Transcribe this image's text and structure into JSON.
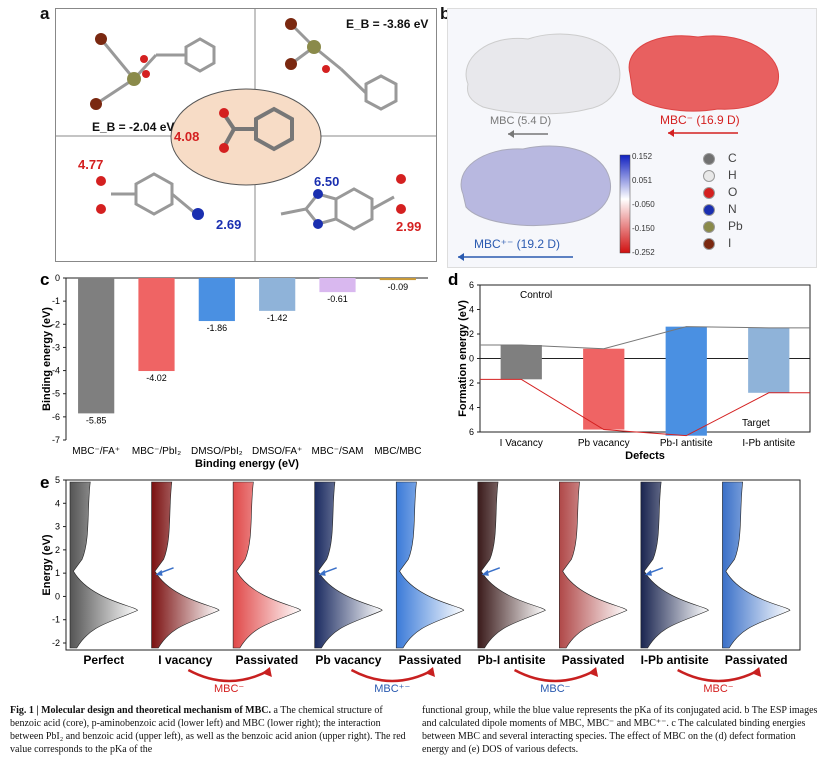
{
  "panels": {
    "a": "a",
    "b": "b",
    "c": "c",
    "d": "d",
    "e": "e"
  },
  "panel_a": {
    "eb_upper_left": "E_B = -2.04 eV",
    "eb_upper_right": "E_B = -3.86 eV",
    "pka_core": "4.08",
    "pka_lower_left_acid": "4.77",
    "pka_lower_left_base": "2.69",
    "pka_lower_right_base": "6.50",
    "pka_lower_right_acid": "2.99"
  },
  "panel_b": {
    "mbc_label": "MBC (5.4 D)",
    "mbc_minus_label": "MBC⁻ (16.9 D)",
    "mbc_plus_minus_label": "MBC⁺⁻ (19.2 D)",
    "colorbar_ticks": [
      "0.152",
      "0.051",
      "-0.050",
      "-0.150",
      "-0.252"
    ],
    "legend": [
      {
        "symbol": "C",
        "color": "#707070"
      },
      {
        "symbol": "H",
        "color": "#e8e8e8"
      },
      {
        "symbol": "O",
        "color": "#d42020"
      },
      {
        "symbol": "N",
        "color": "#1a2fb0"
      },
      {
        "symbol": "Pb",
        "color": "#8a8a4a"
      },
      {
        "symbol": "I",
        "color": "#7a2810"
      }
    ]
  },
  "chart_data": [
    {
      "panel": "c",
      "type": "bar",
      "ylabel": "Binding energy (eV)",
      "xlabel": "Binding energy (eV)",
      "categories": [
        "MBC⁻/FA⁺",
        "MBC⁻/PbI₂",
        "DMSO/PbI₂",
        "DMSO/FA⁺",
        "MBC⁻/SAM",
        "MBC/MBC"
      ],
      "values": [
        -5.85,
        -4.02,
        -1.86,
        -1.42,
        -0.61,
        -0.09
      ],
      "value_labels": [
        "-5.85",
        "-4.02",
        "-1.86",
        "-1.42",
        "-0.61",
        "-0.09"
      ],
      "colors": [
        "#7f7f7f",
        "#ef6464",
        "#4a90e2",
        "#8fb3d9",
        "#d9b8ef",
        "#c89a3a"
      ],
      "ylim": [
        -7,
        0
      ],
      "yticks": [
        "0",
        "-1",
        "-2",
        "-3",
        "-4",
        "-5",
        "-6",
        "-7"
      ]
    },
    {
      "panel": "d",
      "type": "bar",
      "ylabel": "Formation energy (eV)",
      "xlabel": "Defects",
      "categories": [
        "I Vacancy",
        "Pb vacancy",
        "Pb-I antisite",
        "I-Pb antisite"
      ],
      "series": [
        {
          "name": "Control",
          "values": [
            1.1,
            0.8,
            2.6,
            2.5
          ]
        },
        {
          "name": "Target",
          "values": [
            1.7,
            5.8,
            6.3,
            2.8
          ]
        }
      ],
      "colors": [
        "#7f7f7f",
        "#ef6464",
        "#4a90e2",
        "#8fb3d9"
      ],
      "ylim": [
        -6,
        6
      ],
      "yticks": [
        "6",
        "4",
        "2",
        "0",
        "2",
        "4",
        "6"
      ],
      "annotations": [
        "Control",
        "Target"
      ]
    },
    {
      "panel": "e",
      "type": "area",
      "ylabel": "Energy (eV)",
      "yticks": [
        "5",
        "4",
        "3",
        "2",
        "1",
        "0",
        "-1",
        "-2"
      ],
      "ylim": [
        -2.3,
        5
      ],
      "labels": [
        "Perfect",
        "I vacancy",
        "Passivated",
        "Pb vacancy",
        "Passivated",
        "Pb-I antisite",
        "Passivated",
        "I-Pb antisite",
        "Passivated"
      ],
      "colors": [
        "#555555",
        "#7a1010",
        "#e04848",
        "#1a2a60",
        "#3a7ad8",
        "#3a1a1a",
        "#b04848",
        "#1a2550",
        "#3a70c8"
      ],
      "defect_arrows": [
        false,
        true,
        false,
        true,
        false,
        true,
        false,
        true,
        false
      ],
      "arrow_labels": [
        "MBC⁻",
        "MBC⁺⁻",
        "MBC⁻",
        "MBC⁻"
      ],
      "arrow_label_colors": [
        "#d42020",
        "#2a5ab0",
        "#2a5ab0",
        "#d42020"
      ]
    }
  ],
  "caption": {
    "left_bold": "Fig. 1 | Molecular design and theoretical mechanism of MBC.",
    "left_text": " a The chemical structure of benzoic acid (core), p-aminobenzoic acid (lower left) and MBC (lower right); the interaction between PbI₂ and benzoic acid (upper left), as well as the benzoic acid anion (upper right). The red value corresponds to the pKa of the",
    "right_text": "functional group, while the blue value represents the pKa of its conjugated acid. b The ESP images and calculated dipole moments of MBC, MBC⁻ and MBC⁺⁻. c The calculated binding energies between MBC and several interacting species. The effect of MBC on the (d) defect formation energy and (e) DOS of various defects."
  }
}
